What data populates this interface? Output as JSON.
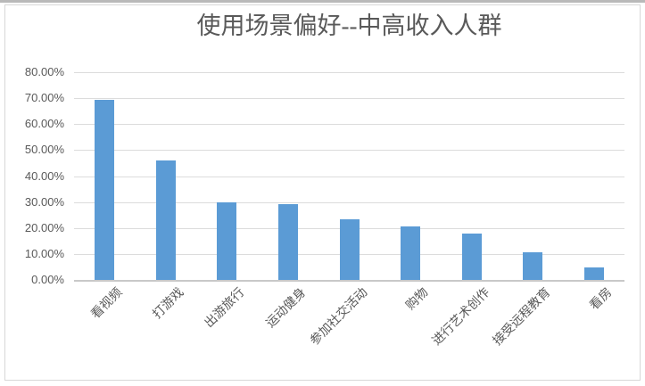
{
  "chart_data": {
    "type": "bar",
    "title": "使用场景偏好--中高收入人群",
    "categories": [
      "看视频",
      "打游戏",
      "出游旅行",
      "运动健身",
      "参加社交活动",
      "购物",
      "进行艺术创作",
      "接受远程教育",
      "看房"
    ],
    "values": [
      69.5,
      46.0,
      30.0,
      29.3,
      23.4,
      20.5,
      18.0,
      10.6,
      4.7
    ],
    "value_unit": "percent",
    "y_tick_labels": [
      "0.00%",
      "10.00%",
      "20.00%",
      "30.00%",
      "40.00%",
      "50.00%",
      "60.00%",
      "70.00%",
      "80.00%"
    ],
    "ylim": [
      0,
      80
    ],
    "y_tick_step": 10,
    "xlabel": "",
    "ylabel": "",
    "grid": true,
    "legend_position": "none",
    "bar_color": "#5b9bd5",
    "gridline_color": "#dcdcdc",
    "text_color": "#595959"
  }
}
